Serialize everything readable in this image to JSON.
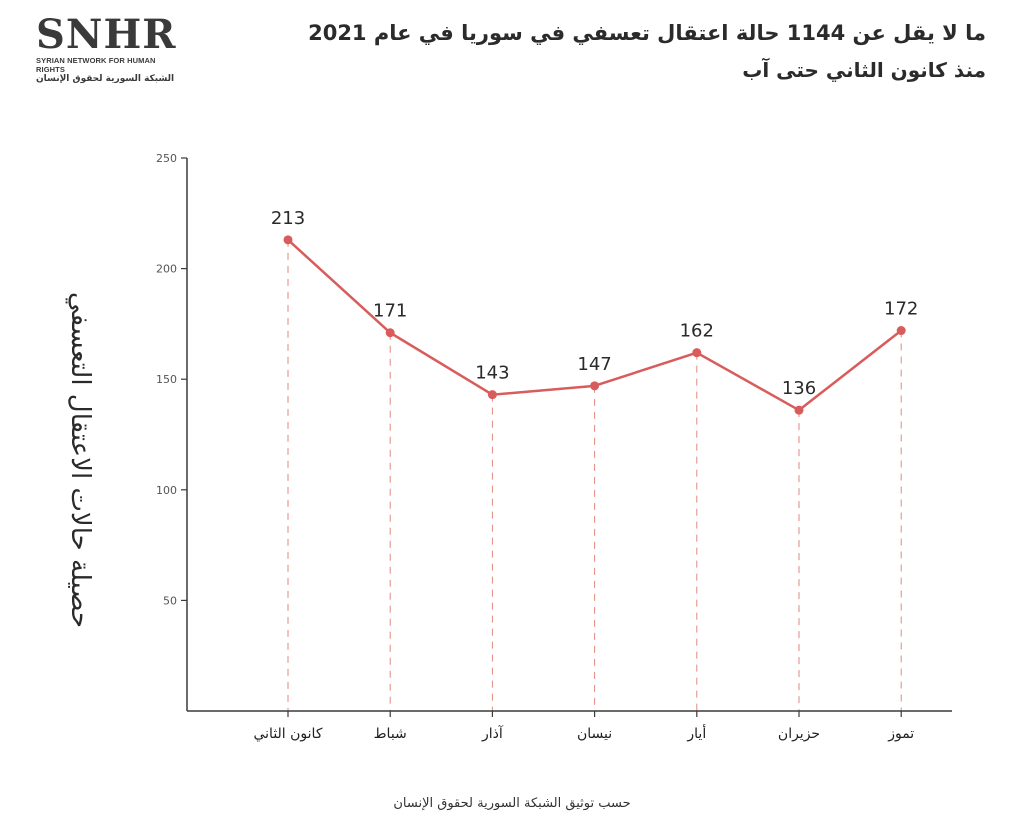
{
  "logo": {
    "wordmark": "SNHR",
    "name_en": "SYRIAN NETWORK FOR HUMAN RIGHTS",
    "name_ar": "الشبكة السورية لحقوق الإنسان"
  },
  "title": {
    "line1": "ما لا يقل عن 1144 حالة اعتقال تعسفي في سوريا في عام 2021",
    "line2": "منذ كانون الثاني حتى آب"
  },
  "footer": {
    "source": "حسب توثيق الشبكة السورية لحقوق الإنسان"
  },
  "colors": {
    "line": "#d95c5c",
    "guide": "#e08a7a",
    "axis": "#3a3a3a",
    "text": "#1f1f1f"
  },
  "chart_data": {
    "type": "line",
    "ylabel": "حصيلة حالات الاعتقال التعسفي",
    "xlabel": "",
    "categories": [
      "كانون الثاني",
      "شباط",
      "آذار",
      "نيسان",
      "أيار",
      "حزيران",
      "تموز"
    ],
    "values": [
      213,
      171,
      143,
      147,
      162,
      136,
      172
    ],
    "yticks": [
      50,
      100,
      150,
      200,
      250
    ],
    "ylim": [
      0,
      250
    ],
    "data_labels": true,
    "grid": false,
    "legend": "none"
  }
}
